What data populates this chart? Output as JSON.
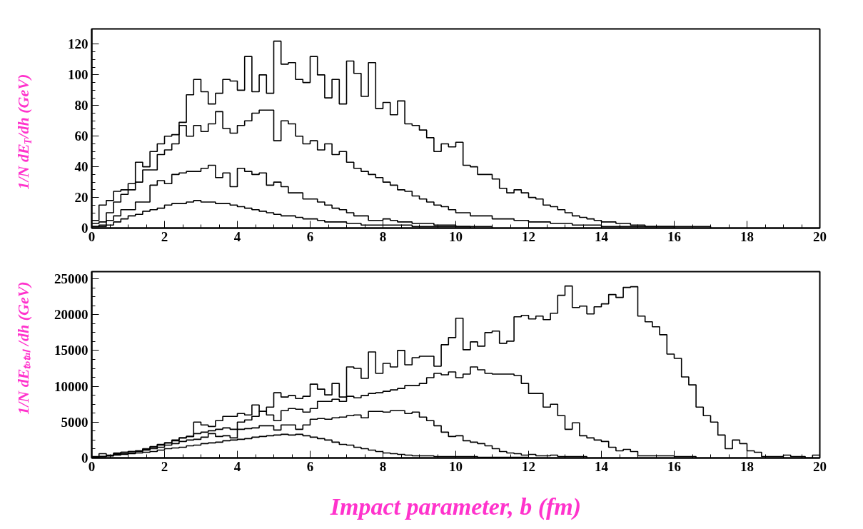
{
  "chart_data": [
    {
      "type": "step",
      "ylabel": "1/N dE$_{T}$/dh (GeV)",
      "xlim": [
        0,
        20
      ],
      "ylim": [
        0,
        130
      ],
      "xticks": [
        0,
        2,
        4,
        6,
        8,
        10,
        12,
        14,
        16,
        18,
        20
      ],
      "yticks": [
        0,
        20,
        40,
        60,
        80,
        100,
        120
      ],
      "grid": false,
      "series": [
        {
          "color": "#000000",
          "x": [
            0,
            0.2,
            0.4,
            0.6,
            0.8,
            1,
            1.2,
            1.4,
            1.6,
            1.8,
            2,
            2.2,
            2.4,
            2.6,
            2.8,
            3,
            3.2,
            3.4,
            3.6,
            3.8,
            4,
            4.2,
            4.4,
            4.6,
            4.8,
            5,
            5.2,
            5.4,
            5.6,
            5.8,
            6,
            6.2,
            6.4,
            6.6,
            6.8,
            7,
            7.2,
            7.4,
            7.6,
            7.8,
            8,
            8.2,
            8.4,
            8.6,
            8.8,
            9,
            9.2,
            9.4,
            9.6,
            9.8,
            10,
            10.2,
            10.4,
            10.6,
            10.8,
            11,
            11.2,
            11.4,
            11.6,
            11.8,
            12,
            12.2,
            12.4,
            12.6,
            12.8,
            13,
            13.2,
            13.4,
            13.6,
            13.8,
            14,
            14.4,
            14.8,
            15.2,
            16,
            17
          ],
          "values": [
            5,
            15,
            18,
            24,
            25,
            29,
            43,
            40,
            50,
            55,
            60,
            61,
            69,
            87,
            97,
            89,
            81,
            88,
            97,
            96,
            90,
            112,
            89,
            100,
            88,
            122,
            107,
            108,
            97,
            95,
            112,
            100,
            85,
            97,
            81,
            109,
            101,
            86,
            108,
            78,
            82,
            74,
            83,
            68,
            67,
            64,
            59,
            50,
            55,
            53,
            56,
            41,
            40,
            35,
            35,
            32,
            26,
            23,
            25,
            23,
            20,
            19,
            15,
            14,
            12,
            10,
            8,
            7,
            6,
            5,
            4,
            3,
            2,
            1,
            1,
            0
          ]
        },
        {
          "color": "#000000",
          "x": [
            0,
            0.2,
            0.4,
            0.6,
            0.8,
            1,
            1.2,
            1.4,
            1.6,
            1.8,
            2,
            2.2,
            2.4,
            2.6,
            2.8,
            3,
            3.2,
            3.4,
            3.6,
            3.8,
            4,
            4.2,
            4.4,
            4.6,
            4.8,
            5,
            5.2,
            5.4,
            5.6,
            5.8,
            6,
            6.2,
            6.4,
            6.6,
            6.8,
            7,
            7.2,
            7.4,
            7.6,
            7.8,
            8,
            8.2,
            8.4,
            8.6,
            8.8,
            9,
            9.2,
            9.4,
            9.6,
            9.8,
            10,
            10.4,
            11,
            11.6,
            12,
            12.6,
            13.2,
            14,
            16
          ],
          "values": [
            3,
            4,
            10,
            17,
            22,
            25,
            30,
            38,
            38,
            48,
            51,
            55,
            67,
            60,
            67,
            63,
            68,
            76,
            65,
            62,
            67,
            70,
            75,
            77,
            77,
            57,
            70,
            68,
            60,
            55,
            57,
            51,
            55,
            48,
            50,
            43,
            39,
            37,
            35,
            33,
            30,
            28,
            25,
            24,
            21,
            19,
            17,
            15,
            14,
            12,
            10,
            8,
            6,
            5,
            4,
            3,
            2,
            1,
            0
          ]
        },
        {
          "color": "#000000",
          "x": [
            0,
            0.2,
            0.4,
            0.6,
            0.8,
            1,
            1.2,
            1.4,
            1.6,
            1.8,
            2,
            2.2,
            2.4,
            2.6,
            2.8,
            3,
            3.2,
            3.4,
            3.6,
            3.8,
            4,
            4.2,
            4.4,
            4.6,
            4.8,
            5,
            5.2,
            5.4,
            5.6,
            5.8,
            6,
            6.2,
            6.4,
            6.6,
            6.8,
            7,
            7.2,
            7.4,
            7.6,
            7.8,
            8,
            8.2,
            8.4,
            8.6,
            8.8,
            9,
            9.4,
            10,
            11
          ],
          "values": [
            1,
            2,
            5,
            8,
            12,
            12,
            17,
            17,
            28,
            31,
            29,
            35,
            36,
            37,
            37,
            39,
            41,
            33,
            36,
            27,
            39,
            37,
            35,
            36,
            28,
            30,
            27,
            23,
            23,
            19,
            19,
            17,
            15,
            13,
            12,
            10,
            8,
            8,
            5,
            5,
            6,
            5,
            4,
            4,
            3,
            3,
            2,
            1,
            0
          ]
        },
        {
          "color": "#000000",
          "x": [
            0,
            0.2,
            0.4,
            0.6,
            0.8,
            1,
            1.2,
            1.4,
            1.6,
            1.8,
            2,
            2.2,
            2.4,
            2.6,
            2.8,
            3,
            3.2,
            3.4,
            3.6,
            3.8,
            4,
            4.2,
            4.4,
            4.6,
            4.8,
            5,
            5.2,
            5.4,
            5.6,
            5.8,
            6,
            6.2,
            6.4,
            6.6,
            6.8,
            7,
            7.4,
            7.8,
            8.2,
            8.8,
            9.6,
            10.4
          ],
          "values": [
            1,
            1,
            2,
            4,
            6,
            8,
            9,
            11,
            12,
            13,
            15,
            16,
            16,
            17,
            18,
            17,
            17,
            16,
            16,
            15,
            14,
            13,
            12,
            11,
            10,
            9,
            8,
            8,
            7,
            6,
            6,
            5,
            4,
            4,
            4,
            3,
            2,
            2,
            2,
            1,
            1,
            0
          ]
        }
      ]
    },
    {
      "type": "step",
      "ylabel": "1/N dEₜₒₜₐₗ /dh (GeV)",
      "xlabel": "Impact parameter, b (fm)",
      "xlim": [
        0,
        20
      ],
      "ylim": [
        0,
        26000
      ],
      "xticks": [
        0,
        2,
        4,
        6,
        8,
        10,
        12,
        14,
        16,
        18,
        20
      ],
      "yticks": [
        0,
        5000,
        10000,
        15000,
        20000,
        25000
      ],
      "grid": false,
      "series": [
        {
          "color": "#000000",
          "x": [
            0,
            0.2,
            0.4,
            0.6,
            0.8,
            1,
            1.2,
            1.4,
            1.6,
            1.8,
            2,
            2.2,
            2.4,
            2.6,
            2.8,
            3,
            3.2,
            3.4,
            3.6,
            3.8,
            4,
            4.2,
            4.4,
            4.6,
            4.8,
            5,
            5.2,
            5.4,
            5.6,
            5.8,
            6,
            6.2,
            6.4,
            6.6,
            6.8,
            7,
            7.2,
            7.4,
            7.6,
            7.8,
            8,
            8.2,
            8.4,
            8.6,
            8.8,
            9,
            9.2,
            9.4,
            9.6,
            9.8,
            10,
            10.2,
            10.4,
            10.6,
            10.8,
            11,
            11.2,
            11.4,
            11.6,
            11.8,
            12,
            12.2,
            12.4,
            12.6,
            12.8,
            13,
            13.2,
            13.4,
            13.6,
            13.8,
            14,
            14.2,
            14.4,
            14.6,
            14.8,
            15,
            15.2,
            15.4,
            15.6,
            15.8,
            16,
            16.2,
            16.4,
            16.6,
            16.8,
            17,
            17.2,
            17.4,
            17.6,
            17.8,
            18,
            18.2,
            18.4,
            18.6,
            18.8,
            19,
            19.2,
            19.4,
            19.6,
            19.8,
            20
          ],
          "values": [
            200,
            600,
            400,
            700,
            800,
            900,
            1000,
            1300,
            1600,
            1900,
            2100,
            2400,
            2800,
            3000,
            5000,
            4600,
            4400,
            5200,
            5800,
            5800,
            6200,
            6000,
            7400,
            6500,
            7100,
            9100,
            8500,
            8700,
            8300,
            8600,
            10300,
            9600,
            8800,
            10400,
            8500,
            12700,
            12500,
            11100,
            14800,
            11800,
            13200,
            12700,
            15000,
            13000,
            14000,
            14200,
            14200,
            12800,
            15800,
            16800,
            19500,
            15100,
            16200,
            15600,
            17500,
            17700,
            16000,
            16300,
            19700,
            19900,
            19400,
            19800,
            19300,
            20200,
            22700,
            24000,
            21000,
            21200,
            20100,
            21100,
            21500,
            22800,
            22400,
            23800,
            23900,
            19800,
            19000,
            18300,
            17200,
            14500,
            13900,
            11300,
            10200,
            7100,
            5900,
            5000,
            3200,
            1300,
            2500,
            2000,
            1000,
            800,
            200,
            200,
            200,
            400,
            200,
            200,
            0,
            400,
            400
          ]
        },
        {
          "color": "#000000",
          "x": [
            0,
            0.2,
            0.4,
            0.6,
            0.8,
            1,
            1.2,
            1.4,
            1.6,
            1.8,
            2,
            2.2,
            2.4,
            2.6,
            2.8,
            3,
            3.2,
            3.4,
            3.6,
            3.8,
            4,
            4.2,
            4.4,
            4.6,
            4.8,
            5,
            5.2,
            5.4,
            5.6,
            5.8,
            6,
            6.2,
            6.4,
            6.6,
            6.8,
            7,
            7.2,
            7.4,
            7.6,
            7.8,
            8,
            8.2,
            8.4,
            8.6,
            8.8,
            9,
            9.2,
            9.4,
            9.6,
            9.8,
            10,
            10.2,
            10.4,
            10.6,
            10.8,
            11,
            11.2,
            11.4,
            11.6,
            11.8,
            12,
            12.2,
            12.4,
            12.6,
            12.8,
            13,
            13.2,
            13.4,
            13.6,
            13.8,
            14,
            14.2,
            14.4,
            14.6,
            14.8,
            15,
            15.2,
            15.4,
            15.6,
            15.8,
            16,
            16.2,
            16.4,
            16.6
          ],
          "values": [
            100,
            200,
            300,
            600,
            800,
            900,
            1000,
            1200,
            1500,
            1800,
            2100,
            2500,
            2800,
            3000,
            3400,
            3600,
            3800,
            4000,
            4200,
            4000,
            5000,
            5300,
            5800,
            6500,
            6000,
            5200,
            6600,
            6900,
            6800,
            6400,
            6900,
            7900,
            7900,
            8200,
            7900,
            8600,
            8400,
            8700,
            9000,
            9100,
            9300,
            9500,
            9700,
            10100,
            10100,
            10400,
            11200,
            11800,
            11600,
            12000,
            11200,
            11700,
            12700,
            12300,
            11800,
            11700,
            11700,
            11700,
            11500,
            10400,
            9000,
            9000,
            7100,
            7500,
            5900,
            4000,
            4900,
            3100,
            2800,
            2500,
            2300,
            1500,
            1000,
            1200,
            900,
            300,
            300,
            300,
            300,
            300,
            200,
            200,
            200,
            0
          ]
        },
        {
          "color": "#000000",
          "x": [
            0,
            0.2,
            0.4,
            0.6,
            0.8,
            1,
            1.2,
            1.4,
            1.6,
            1.8,
            2,
            2.2,
            2.4,
            2.6,
            2.8,
            3,
            3.2,
            3.4,
            3.6,
            3.8,
            4,
            4.2,
            4.4,
            4.6,
            4.8,
            5,
            5.2,
            5.4,
            5.6,
            5.8,
            6,
            6.2,
            6.4,
            6.6,
            6.8,
            7,
            7.2,
            7.4,
            7.6,
            7.8,
            8,
            8.2,
            8.4,
            8.6,
            8.8,
            9,
            9.2,
            9.4,
            9.6,
            9.8,
            10,
            10.2,
            10.4,
            10.6,
            10.8,
            11,
            11.2,
            11.4,
            11.6,
            11.8,
            12,
            12.2,
            12.4,
            12.6,
            12.8,
            13.6
          ],
          "values": [
            100,
            200,
            300,
            500,
            600,
            700,
            900,
            1100,
            1300,
            1500,
            1800,
            2000,
            2300,
            2500,
            2600,
            2900,
            3400,
            3000,
            3100,
            2800,
            4000,
            4100,
            4200,
            4500,
            4500,
            3900,
            4600,
            4600,
            4000,
            4600,
            5400,
            5500,
            5400,
            5600,
            5700,
            5900,
            6000,
            5600,
            6500,
            6500,
            6400,
            6600,
            6600,
            6200,
            6400,
            5700,
            5200,
            4500,
            3600,
            3000,
            3100,
            2400,
            2200,
            2000,
            1700,
            1300,
            900,
            700,
            600,
            400,
            500,
            300,
            300,
            400,
            200,
            0
          ]
        },
        {
          "color": "#000000",
          "x": [
            0,
            0.2,
            0.4,
            0.6,
            0.8,
            1,
            1.2,
            1.4,
            1.6,
            1.8,
            2,
            2.2,
            2.4,
            2.6,
            2.8,
            3,
            3.2,
            3.4,
            3.6,
            3.8,
            4,
            4.2,
            4.4,
            4.6,
            4.8,
            5,
            5.2,
            5.4,
            5.6,
            5.8,
            6,
            6.2,
            6.4,
            6.6,
            6.8,
            7,
            7.2,
            7.4,
            7.6,
            7.8,
            8,
            8.2,
            8.4,
            8.6,
            8.8,
            9.4,
            10.6,
            12
          ],
          "values": [
            100,
            200,
            300,
            400,
            500,
            600,
            700,
            800,
            900,
            1100,
            1300,
            1400,
            1500,
            1700,
            1800,
            2000,
            2100,
            2200,
            2400,
            2500,
            2600,
            2700,
            2900,
            3000,
            3100,
            3200,
            3300,
            3200,
            3300,
            3100,
            2900,
            2700,
            2500,
            2200,
            1900,
            1800,
            1500,
            1300,
            1100,
            900,
            700,
            600,
            500,
            400,
            300,
            200,
            100,
            0
          ]
        }
      ]
    }
  ]
}
